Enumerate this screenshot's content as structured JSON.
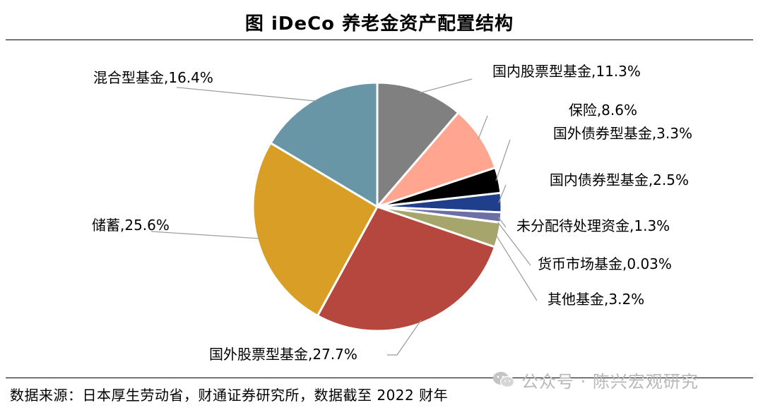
{
  "figure_title": "图  iDeCo 养老金资产配置结构",
  "source_note": "数据来源：日本厚生劳动省，财通证券研究所，数据截至 2022 财年",
  "watermark": {
    "text": "公众号 · 陈兴宏观研究",
    "icon": "wechat-logo-icon"
  },
  "chart_data": {
    "type": "pie",
    "title": "图  iDeCo 养老金资产配置结构",
    "unit": "%",
    "slices": [
      {
        "name": "国内股票型基金",
        "value": 11.3,
        "label": "国内股票型基金,11.3%",
        "color": "#808080"
      },
      {
        "name": "保险",
        "value": 8.6,
        "label": "保险,8.6%",
        "color": "#ffa590"
      },
      {
        "name": "国外债券型基金",
        "value": 3.3,
        "label": "国外债券型基金,3.3%",
        "color": "#000000"
      },
      {
        "name": "国内债券型基金",
        "value": 2.5,
        "label": "国内债券型基金,2.5%",
        "color": "#1f3f8c"
      },
      {
        "name": "未分配待处理资金",
        "value": 1.3,
        "label": "未分配待处理资金,1.3%",
        "color": "#6c6ea6"
      },
      {
        "name": "货币市场基金",
        "value": 0.03,
        "label": "货币市场基金,0.03%",
        "color": "#8fb0a8"
      },
      {
        "name": "其他基金",
        "value": 3.2,
        "label": "其他基金,3.2%",
        "color": "#a6a56c"
      },
      {
        "name": "国外股票型基金",
        "value": 27.7,
        "label": "国外股票型基金,27.7%",
        "color": "#b5473f"
      },
      {
        "name": "储蓄",
        "value": 25.6,
        "label": "储蓄,25.6%",
        "color": "#d99e26"
      },
      {
        "name": "混合型基金",
        "value": 16.4,
        "label": "混合型基金,16.4%",
        "color": "#6896a7"
      }
    ]
  }
}
